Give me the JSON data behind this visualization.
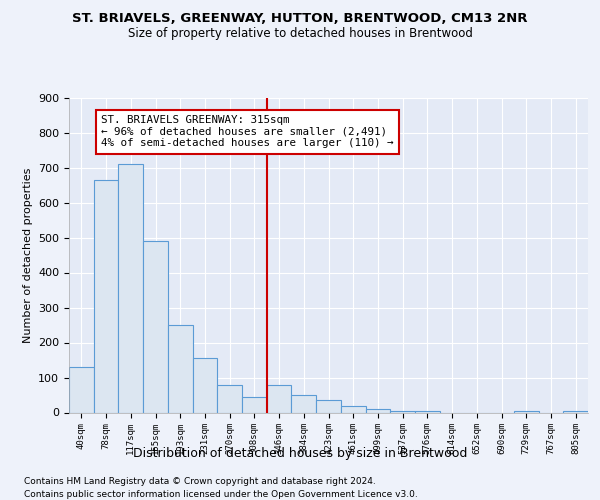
{
  "title": "ST. BRIAVELS, GREENWAY, HUTTON, BRENTWOOD, CM13 2NR",
  "subtitle": "Size of property relative to detached houses in Brentwood",
  "xlabel": "Distribution of detached houses by size in Brentwood",
  "ylabel": "Number of detached properties",
  "footnote1": "Contains HM Land Registry data © Crown copyright and database right 2024.",
  "footnote2": "Contains public sector information licensed under the Open Government Licence v3.0.",
  "annotation_line1": "ST. BRIAVELS GREENWAY: 315sqm",
  "annotation_line2": "← 96% of detached houses are smaller (2,491)",
  "annotation_line3": "4% of semi-detached houses are larger (110) →",
  "bar_edge_color": "#5b9bd5",
  "bar_face_color": "#dce6f1",
  "annotation_box_color": "#cc0000",
  "vline_color": "#cc0000",
  "background_color": "#eef2fa",
  "plot_bg_color": "#e4eaf6",
  "grid_color": "#ffffff",
  "categories": [
    "40sqm",
    "78sqm",
    "117sqm",
    "155sqm",
    "193sqm",
    "231sqm",
    "270sqm",
    "308sqm",
    "346sqm",
    "384sqm",
    "423sqm",
    "461sqm",
    "499sqm",
    "537sqm",
    "576sqm",
    "614sqm",
    "652sqm",
    "690sqm",
    "729sqm",
    "767sqm",
    "805sqm"
  ],
  "values": [
    130,
    665,
    710,
    490,
    250,
    155,
    80,
    45,
    80,
    50,
    35,
    20,
    10,
    5,
    3,
    0,
    0,
    0,
    5,
    0,
    5
  ],
  "ylim": [
    0,
    900
  ],
  "yticks": [
    0,
    100,
    200,
    300,
    400,
    500,
    600,
    700,
    800,
    900
  ],
  "vline_x": 7.5
}
